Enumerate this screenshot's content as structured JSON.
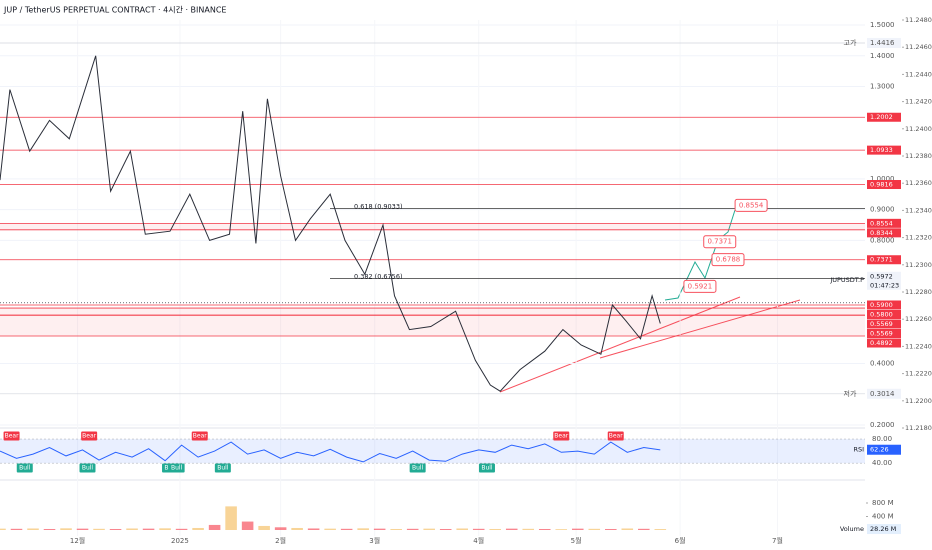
{
  "chart_data": [
    {
      "type": "line",
      "title": "JUP / TetherUS PERPETUAL CONTRACT · 4시간 · BINANCE",
      "x": [
        0,
        0.6,
        1.8,
        3,
        4.2,
        5.8,
        6.7,
        7.9,
        8.8,
        10.3,
        11.5,
        12.7,
        13.9,
        14.7,
        15.5,
        16.2,
        17,
        17.9,
        18.8,
        20,
        20.9,
        22.1,
        23.2,
        23.9,
        24.8,
        26.1,
        27.6,
        28.8,
        29.7,
        30.3,
        31.5,
        33,
        34.1,
        35.2,
        36.4,
        37.1,
        37.9,
        38.8,
        39.5,
        40
      ],
      "series": [
        {
          "color": "#2a2e39",
          "values": [
            0.996,
            1.29,
            1.09,
            1.19,
            1.13,
            1.4,
            0.96,
            1.09,
            0.82,
            0.83,
            0.95,
            0.8,
            0.82,
            1.22,
            0.79,
            1.26,
            1.01,
            0.8,
            0.87,
            0.95,
            0.8,
            0.69,
            0.85,
            0.62,
            0.51,
            0.52,
            0.57,
            0.41,
            0.33,
            0.31,
            0.38,
            0.44,
            0.51,
            0.46,
            0.43,
            0.59,
            0.54,
            0.48,
            0.62,
            0.53
          ]
        }
      ],
      "xlim": [
        0,
        52.4
      ],
      "xticks": [
        {
          "value": 4.7,
          "label": "12월"
        },
        {
          "value": 10.9,
          "label": "2025"
        },
        {
          "value": 17,
          "label": "2월"
        },
        {
          "value": 22.7,
          "label": "3월"
        },
        {
          "value": 29,
          "label": "4월"
        },
        {
          "value": 34.9,
          "label": "5월"
        },
        {
          "value": 41.2,
          "label": "6월"
        },
        {
          "value": 47.1,
          "label": "7월"
        }
      ],
      "ylim": [
        0.2,
        1.5
      ],
      "yticks": [
        {
          "value": 1.5,
          "label": "1.5000"
        },
        {
          "value": 1.4,
          "label": "1.4000"
        },
        {
          "value": 1.3,
          "label": "1.3000"
        },
        {
          "value": 1.0,
          "label": "1.0000"
        },
        {
          "value": 0.9,
          "label": "0.9000"
        },
        {
          "value": 0.8,
          "label": "0.8000"
        },
        {
          "value": 0.4,
          "label": "0.4000"
        },
        {
          "value": 0.2,
          "label": "0.2000"
        }
      ],
      "y2lim": [
        11.218,
        11.248
      ],
      "y2ticks": [
        {
          "value": 11.248,
          "label": "11.2480"
        },
        {
          "value": 11.246,
          "label": "11.2460"
        },
        {
          "value": 11.244,
          "label": "11.2440"
        },
        {
          "value": 11.242,
          "label": "11.2420"
        },
        {
          "value": 11.24,
          "label": "11.2400"
        },
        {
          "value": 11.238,
          "label": "11.2380"
        },
        {
          "value": 11.236,
          "label": "11.2360"
        },
        {
          "value": 11.234,
          "label": "11.2340"
        },
        {
          "value": 11.232,
          "label": "11.2320"
        },
        {
          "value": 11.23,
          "label": "11.2300"
        },
        {
          "value": 11.228,
          "label": "11.2280"
        },
        {
          "value": 11.226,
          "label": "11.2260"
        },
        {
          "value": 11.224,
          "label": "11.2240"
        },
        {
          "value": 11.222,
          "label": "11.2220"
        },
        {
          "value": 11.22,
          "label": "11.2200"
        },
        {
          "value": 11.218,
          "label": "11.2180"
        }
      ],
      "grid": true,
      "levels": [
        {
          "value": 1.2002,
          "label": "1.2002",
          "color": "#f23645"
        },
        {
          "value": 1.0933,
          "label": "1.0933",
          "color": "#f23645"
        },
        {
          "value": 0.9816,
          "label": "0.9816",
          "color": "#f23645"
        },
        {
          "value": 0.8554,
          "label": "0.8554",
          "color": "#f23645",
          "band": true
        },
        {
          "value": 0.8344,
          "label": "0.8344",
          "color": "#f23645"
        },
        {
          "value": 0.7371,
          "label": "0.7371",
          "color": "#f23645"
        },
        {
          "value": 0.59,
          "label": "0.5900",
          "color": "#f23645"
        },
        {
          "value": 0.58,
          "label": "0.5800",
          "color": "#f23645",
          "band": true
        },
        {
          "value": 0.5569,
          "label": "0.5569",
          "color": "#f23645"
        },
        {
          "value": 0.5569,
          "label": "0.5569",
          "color": "#f23645",
          "band": true
        },
        {
          "value": 0.4892,
          "label": "0.4892",
          "color": "#f23645"
        }
      ],
      "fib": [
        {
          "value": 0.9033,
          "label": "0.618 (0.9033)"
        },
        {
          "value": 0.6756,
          "label": "0.382 (0.6756)"
        }
      ],
      "targets": [
        {
          "x": 45.5,
          "value": 0.8554,
          "label": "0.8554"
        },
        {
          "x": 43.6,
          "value": 0.7371,
          "label": "0.7371"
        },
        {
          "x": 44.1,
          "value": 0.6788,
          "label": "0.6788"
        },
        {
          "x": 42.4,
          "value": 0.5921,
          "label": "0.5921"
        }
      ],
      "high": {
        "name": "고가",
        "value": 1.4416,
        "label": "1.4416"
      },
      "low": {
        "name": "저가",
        "value": 0.3014,
        "label": "0.3014"
      },
      "current": {
        "name": "JUPUSDT.P",
        "value": 0.5972,
        "label": "0.5972",
        "countdown": "01:47:23"
      }
    },
    {
      "type": "rsi",
      "name": "RSI",
      "color": "#2962ff",
      "x": [
        0,
        1,
        2,
        3,
        4,
        5,
        6,
        7,
        8,
        9,
        10,
        11,
        12,
        13,
        14,
        15,
        16,
        17,
        18,
        19,
        20,
        21,
        22,
        23,
        24,
        25,
        26,
        27,
        28,
        29,
        30,
        31,
        32,
        33,
        34,
        35,
        36,
        37,
        38,
        39,
        40
      ],
      "values": [
        60,
        48,
        55,
        66,
        52,
        62,
        45,
        58,
        50,
        64,
        44,
        70,
        50,
        60,
        75,
        55,
        62,
        48,
        58,
        52,
        63,
        50,
        42,
        56,
        48,
        60,
        45,
        43,
        55,
        62,
        58,
        70,
        64,
        72,
        58,
        60,
        55,
        75,
        58,
        66,
        62
      ],
      "ylim": [
        17,
        95
      ],
      "yticks": [
        {
          "value": 80,
          "label": "80.00"
        },
        {
          "value": 40,
          "label": "40.00"
        }
      ],
      "current": {
        "value": 62.26,
        "label": "62.26"
      },
      "signals": [
        {
          "text": "Bear",
          "x": 0.7
        },
        {
          "text": "Bull",
          "x": 1.5
        },
        {
          "text": "Bull",
          "x": 5.3
        },
        {
          "text": "Bear",
          "x": 5.4
        },
        {
          "text": "Bull",
          "x": 10.3
        },
        {
          "text": "Bull",
          "x": 10.7
        },
        {
          "text": "Bear",
          "x": 12.1
        },
        {
          "text": "Bull",
          "x": 13.5
        },
        {
          "text": "Bull",
          "x": 25.3
        },
        {
          "text": "Bull",
          "x": 29.5
        },
        {
          "text": "Bear",
          "x": 34
        },
        {
          "text": "Bear",
          "x": 37.3
        }
      ]
    },
    {
      "type": "volume",
      "name": "Volume",
      "x": [
        0,
        1,
        2,
        3,
        4,
        5,
        6,
        7,
        8,
        9,
        10,
        11,
        12,
        13,
        14,
        15,
        16,
        17,
        18,
        19,
        20,
        21,
        22,
        23,
        24,
        25,
        26,
        27,
        28,
        29,
        30,
        31,
        32,
        33,
        34,
        35,
        36,
        37,
        38,
        39,
        40
      ],
      "values": [
        40,
        35,
        45,
        30,
        50,
        40,
        35,
        30,
        45,
        40,
        50,
        35,
        60,
        150,
        700,
        250,
        120,
        80,
        60,
        45,
        40,
        35,
        50,
        40,
        30,
        35,
        40,
        30,
        45,
        35,
        30,
        40,
        35,
        30,
        25,
        40,
        35,
        30,
        45,
        35,
        28.26
      ],
      "ylim": [
        0,
        1600
      ],
      "yticks": [
        {
          "value": 800,
          "label": "800 M"
        },
        {
          "value": 400,
          "label": "400 M"
        }
      ],
      "current": {
        "value": 28.26,
        "label": "28.26 M"
      }
    }
  ]
}
